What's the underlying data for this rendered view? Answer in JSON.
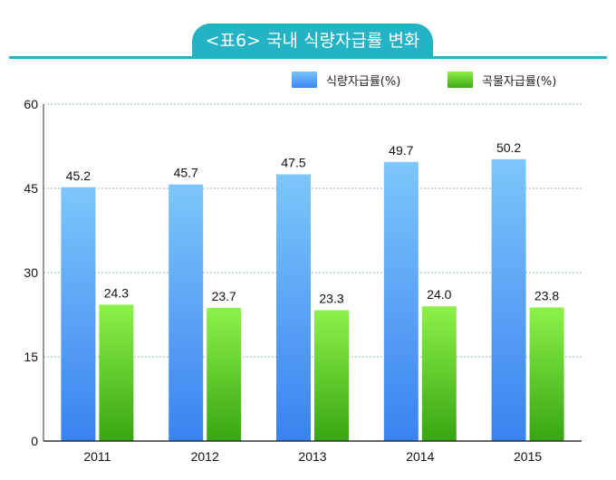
{
  "title": "<표6> 국내 식량자급률 변화",
  "colors": {
    "title_bar": "#23b3c5",
    "food_self_sufficiency": "#4a9ef5",
    "grain_self_sufficiency": "#4ccd1a"
  },
  "chart_data": {
    "type": "bar",
    "categories": [
      "2011",
      "2012",
      "2013",
      "2014",
      "2015"
    ],
    "series": [
      {
        "name": "식량자급률(%)",
        "values": [
          45.2,
          45.7,
          47.5,
          49.7,
          50.2
        ],
        "labels": [
          "45.2",
          "45.7",
          "47.5",
          "49.7",
          "50.2"
        ]
      },
      {
        "name": "곡물자급률(%)",
        "values": [
          24.3,
          23.7,
          23.3,
          24.0,
          23.8
        ],
        "labels": [
          "24.3",
          "23.7",
          "23.3",
          "24.0",
          "23.8"
        ]
      }
    ],
    "title": "<표6> 국내 식량자급률 변화",
    "xlabel": "",
    "ylabel": "",
    "ylim": [
      0,
      60
    ],
    "yticks": [
      "0",
      "15",
      "30",
      "45",
      "60"
    ],
    "grid": true,
    "legend": "top-right"
  }
}
